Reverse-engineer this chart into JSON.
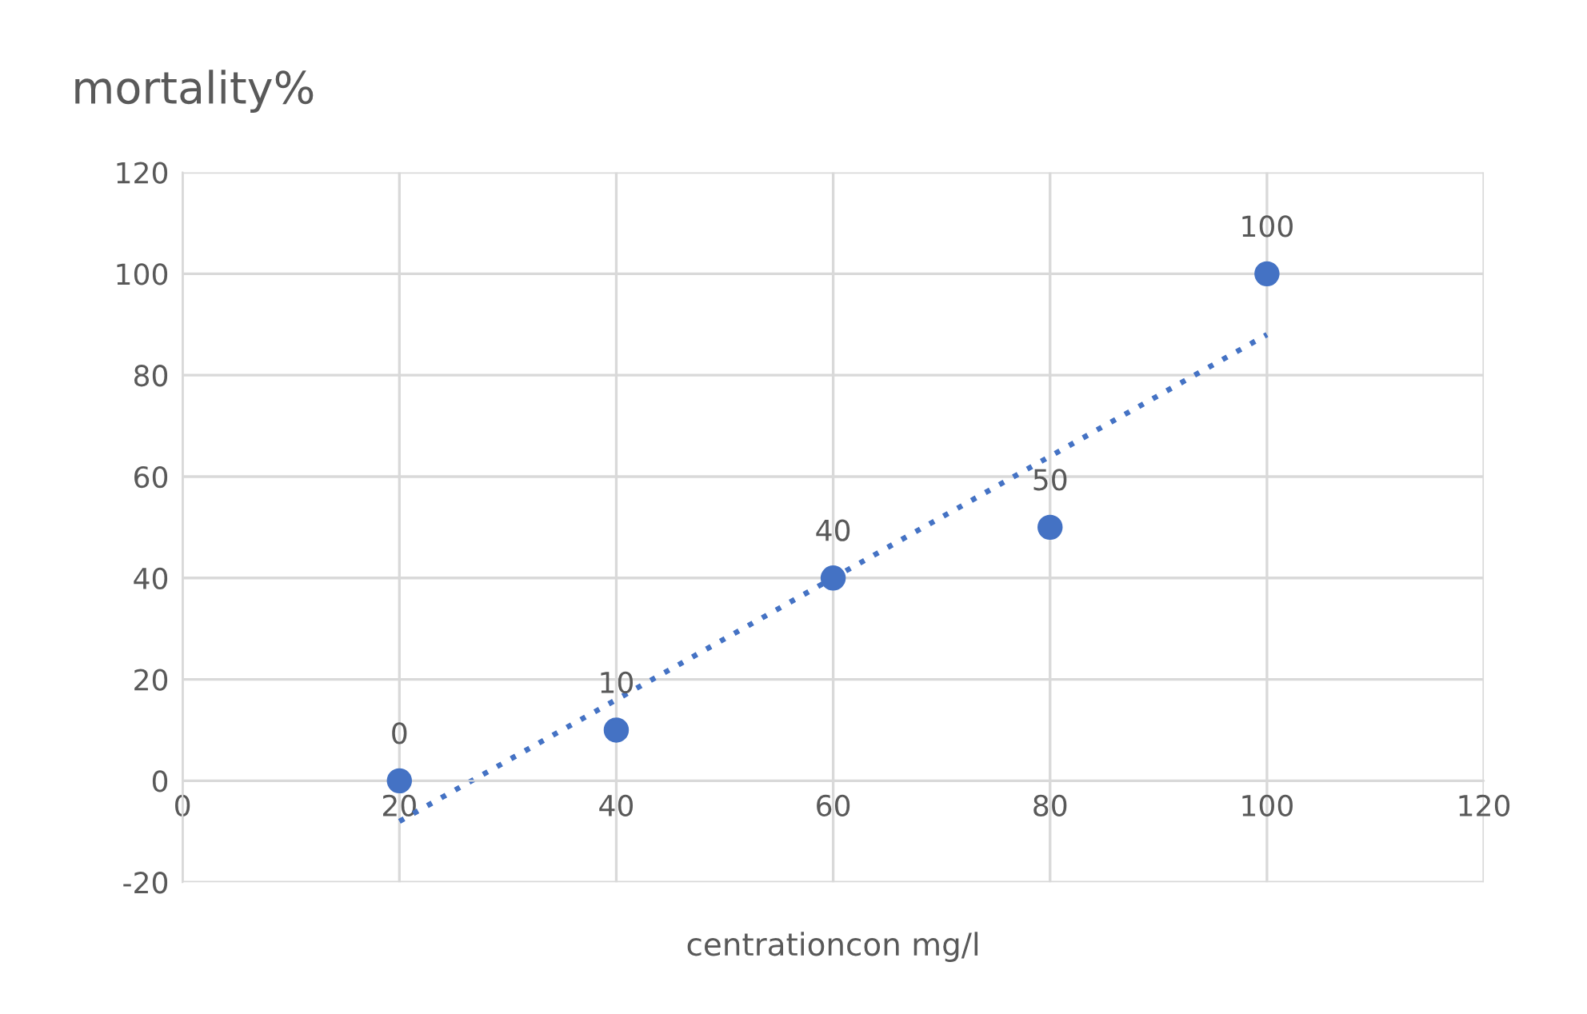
{
  "chart_data": {
    "type": "scatter",
    "title": "mortality%",
    "xlabel": "centrationcon mg/l",
    "xlim": [
      0,
      120
    ],
    "xticks": [
      0,
      20,
      40,
      60,
      80,
      100,
      120
    ],
    "ylim": [
      -20,
      120
    ],
    "yticks": [
      -20,
      0,
      20,
      40,
      60,
      80,
      100,
      120
    ],
    "grid": true,
    "legend": false,
    "series": [
      {
        "color": "#4472c4",
        "marker": "circle",
        "x": [
          20,
          40,
          60,
          80,
          100
        ],
        "values": [
          0,
          10,
          40,
          50,
          100
        ],
        "value_labels": [
          "0",
          "10",
          "40",
          "50",
          "100"
        ]
      },
      {
        "type": "line",
        "color": "#4472c4",
        "marker": "none",
        "line_style": "dotted",
        "x": [
          20,
          100
        ],
        "values": [
          -8,
          88
        ]
      }
    ]
  }
}
